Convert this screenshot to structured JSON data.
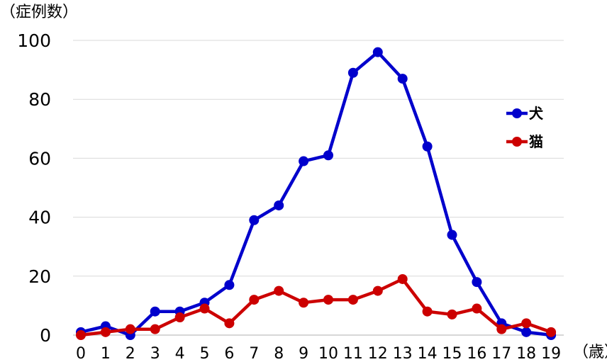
{
  "chart_data": {
    "type": "line",
    "ylabel": "（症例数）",
    "xlabel": "（歳）",
    "ylim": [
      0,
      100
    ],
    "yticks": [
      "0",
      "20",
      "40",
      "60",
      "80",
      "100"
    ],
    "x": [
      "0",
      "1",
      "2",
      "3",
      "4",
      "5",
      "6",
      "7",
      "8",
      "9",
      "10",
      "11",
      "12",
      "13",
      "14",
      "15",
      "16",
      "17",
      "18",
      "19"
    ],
    "grid": true,
    "legend_position": "right",
    "series": [
      {
        "name": "犬",
        "color": "#0000cc",
        "values": [
          1,
          3,
          0,
          8,
          8,
          11,
          17,
          39,
          44,
          59,
          61,
          89,
          96,
          87,
          64,
          34,
          18,
          4,
          1,
          0
        ]
      },
      {
        "name": "猫",
        "color": "#cc0000",
        "values": [
          0,
          1,
          2,
          2,
          6,
          9,
          4,
          12,
          15,
          11,
          12,
          12,
          15,
          19,
          8,
          7,
          9,
          2,
          4,
          1
        ]
      }
    ]
  }
}
